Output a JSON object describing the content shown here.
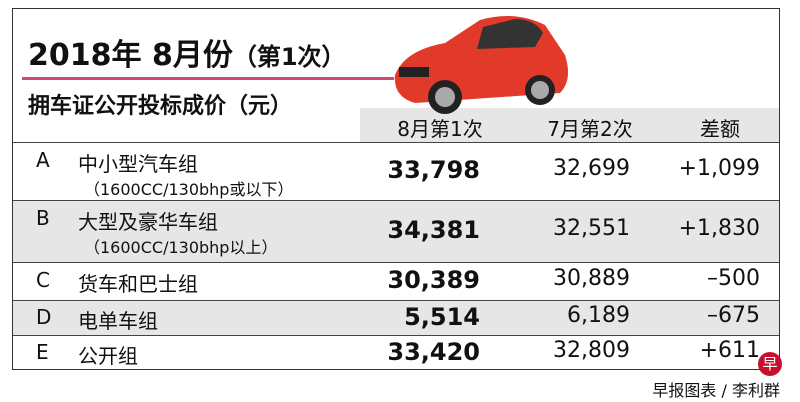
{
  "header": {
    "title": "2018年 8月份",
    "title_note": "（第1次）",
    "subtitle": "拥车证公开投标成价（元）"
  },
  "table": {
    "columns": [
      "8月第1次",
      "7月第2次",
      "差额"
    ],
    "rows": [
      {
        "code": "A",
        "name": "中小型汽车组",
        "spec": "（1600CC/130bhp或以下）",
        "cells": [
          "33,798",
          "32,699",
          "+1,099"
        ]
      },
      {
        "code": "B",
        "name": "大型及豪华车组",
        "spec": "（1600CC/130bhp以上）",
        "cells": [
          "34,381",
          "32,551",
          "+1,830"
        ]
      },
      {
        "code": "C",
        "name": "货车和巴士组",
        "cells": [
          "30,389",
          "30,889",
          "–500"
        ]
      },
      {
        "code": "D",
        "name": "电单车组",
        "cells": [
          "5,514",
          "6,189",
          "–675"
        ]
      },
      {
        "code": "E",
        "name": "公开组",
        "cells": [
          "33,420",
          "32,809",
          "+611"
        ]
      }
    ]
  },
  "footer": {
    "logo": "早",
    "credit": "早报图表 / 李利群"
  }
}
